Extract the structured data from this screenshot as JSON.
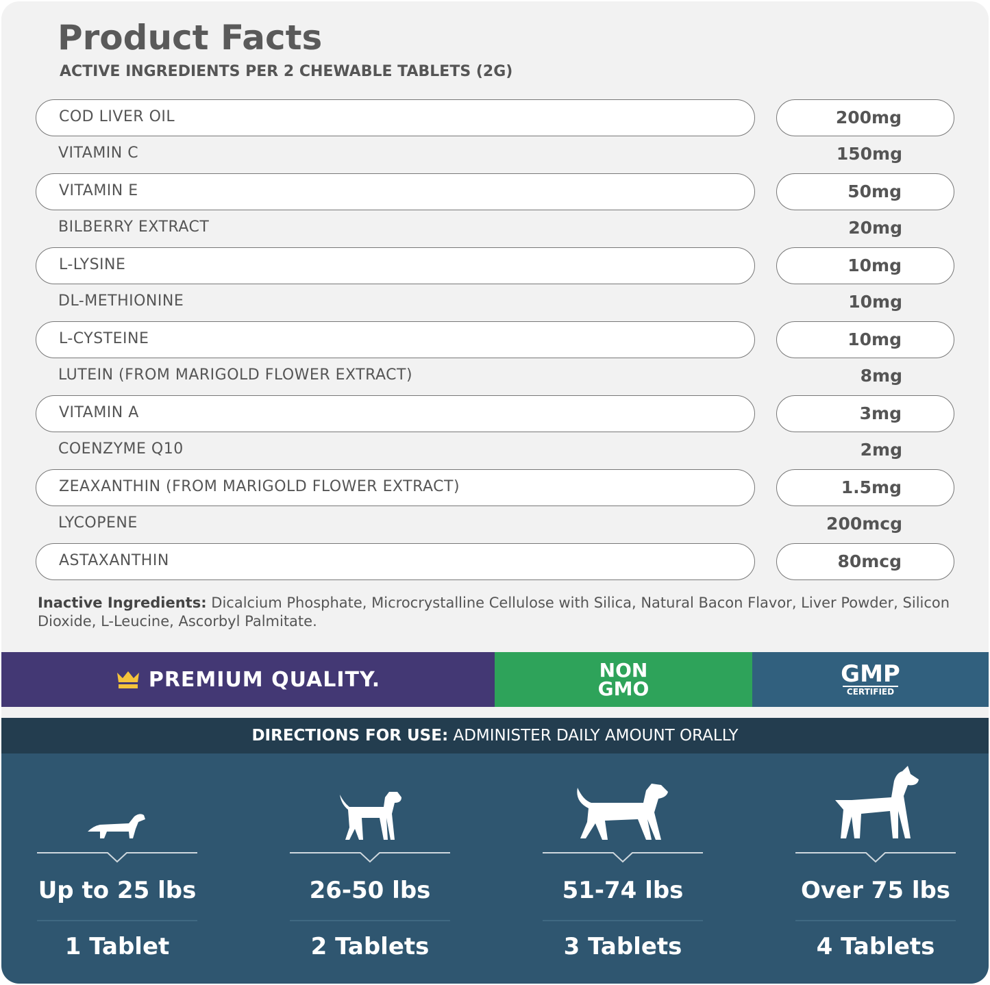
{
  "title": "Product Facts",
  "subtitle": "ACTIVE INGREDIENTS PER 2 CHEWABLE TABLETS (2G)",
  "ingredients": [
    {
      "name": "COD LIVER OIL",
      "amount": "200mg"
    },
    {
      "name": "VITAMIN C",
      "amount": "150mg"
    },
    {
      "name": "VITAMIN E",
      "amount": "50mg"
    },
    {
      "name": "BILBERRY EXTRACT",
      "amount": "20mg"
    },
    {
      "name": "L-LYSINE",
      "amount": "10mg"
    },
    {
      "name": "DL-METHIONINE",
      "amount": "10mg"
    },
    {
      "name": "L-CYSTEINE",
      "amount": "10mg"
    },
    {
      "name": "LUTEIN (FROM MARIGOLD FLOWER EXTRACT)",
      "amount": "8mg"
    },
    {
      "name": "VITAMIN A",
      "amount": "3mg"
    },
    {
      "name": "COENZYME Q10",
      "amount": "2mg"
    },
    {
      "name": "ZEAXANTHIN (FROM MARIGOLD FLOWER EXTRACT)",
      "amount": "1.5mg"
    },
    {
      "name": "LYCOPENE",
      "amount": "200mcg"
    },
    {
      "name": "ASTAXANTHIN",
      "amount": "80mcg"
    }
  ],
  "inactive": {
    "label": "Inactive Ingredients:",
    "text": " Dicalcium Phosphate, Microcrystalline Cellulose with Silica, Natural Bacon Flavor, Liver Powder, Silicon Dioxide, L-Leucine, Ascorbyl Palmitate."
  },
  "badges": {
    "premium": "PREMIUM QUALITY.",
    "non": "NON",
    "gmo": "GMO",
    "gmp": "GMP",
    "certified": "CERTIFIED"
  },
  "colors": {
    "premium": "#433874",
    "nongmo": "#2ea35a",
    "gmp": "#31607e",
    "directions": "#233d4f",
    "panel": "#2f5670",
    "crown": "#f5c33b"
  },
  "directions": {
    "label": "DIRECTIONS FOR USE:",
    "text": " ADMINISTER DAILY AMOUNT ORALLY"
  },
  "dosage": [
    {
      "weight": "Up to 25 lbs",
      "amount": "1 Tablet",
      "icon": "dachshund-icon"
    },
    {
      "weight": "26-50 lbs",
      "amount": "2 Tablets",
      "icon": "small-dog-icon"
    },
    {
      "weight": "51-74 lbs",
      "amount": "3 Tablets",
      "icon": "retriever-icon"
    },
    {
      "weight": "Over 75 lbs",
      "amount": "4 Tablets",
      "icon": "boxer-icon"
    }
  ]
}
